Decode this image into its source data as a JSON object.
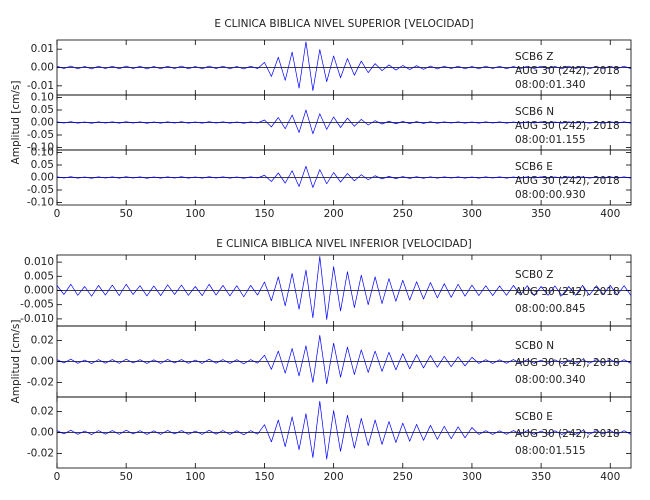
{
  "chart_data": [
    {
      "type": "line",
      "title": "E CLINICA BIBLICA NIVEL SUPERIOR [VELOCIDAD]",
      "y_label": "Amplitud [cm/s]",
      "xlim": [
        0,
        415
      ],
      "xticks": [
        0,
        50,
        100,
        150,
        200,
        250,
        300,
        350,
        400
      ],
      "x": [
        0,
        5,
        10,
        15,
        20,
        25,
        30,
        35,
        40,
        45,
        50,
        55,
        60,
        65,
        70,
        75,
        80,
        85,
        90,
        95,
        100,
        105,
        110,
        115,
        120,
        125,
        130,
        135,
        140,
        145,
        150,
        155,
        160,
        165,
        170,
        175,
        180,
        185,
        190,
        195,
        200,
        205,
        210,
        215,
        220,
        225,
        230,
        235,
        240,
        245,
        250,
        255,
        260,
        265,
        270,
        275,
        280,
        285,
        290,
        295,
        300,
        305,
        310,
        315,
        320,
        325,
        330,
        335,
        340,
        345,
        350,
        355,
        360,
        365,
        370,
        375,
        380,
        385,
        390,
        395,
        400,
        405,
        410,
        415
      ],
      "panels": [
        {
          "station": "SCB6   Z",
          "date": "AUG 30 (242), 2018",
          "time": "08:00:01.340",
          "color": "#0000ff",
          "ylim": [
            -0.015,
            0.015
          ],
          "yticks": [
            -0.01,
            {
              "value": 0,
              "label": "0.00"
            },
            0.01
          ],
          "values": [
            0.0007,
            -0.0006,
            0.0008,
            -0.0007,
            0.0006,
            -0.0008,
            0.0007,
            -0.0006,
            0.0007,
            -0.0007,
            0.0008,
            -0.0006,
            0.0007,
            -0.0008,
            0.0006,
            -0.0007,
            0.0007,
            -0.0006,
            0.0008,
            -0.0007,
            0.0006,
            -0.0007,
            0.0008,
            -0.0006,
            0.0007,
            -0.0007,
            0.0006,
            -0.0008,
            0.0007,
            -0.0006,
            0.0028,
            -0.0049,
            0.0056,
            -0.007,
            0.0084,
            -0.0112,
            0.014,
            -0.0126,
            0.0098,
            -0.0077,
            0.0063,
            -0.0056,
            0.0049,
            -0.0042,
            0.0035,
            -0.0028,
            0.0021,
            -0.0017,
            0.0014,
            -0.0014,
            0.0011,
            -0.0011,
            0.001,
            -0.001,
            0.0008,
            -0.0008,
            0.0007,
            -0.0006,
            0.0007,
            -0.0007,
            0.0006,
            -0.0007,
            0.0007,
            -0.0006,
            0.0007,
            -0.0007,
            0.0006,
            -0.0007,
            0.0007,
            -0.0006,
            0.0007,
            -0.0007,
            0.0006,
            -0.0007,
            0.0007,
            -0.0006,
            0.0007,
            -0.0007,
            0.0006,
            -0.0007,
            0.0007,
            -0.0006,
            0.0007,
            -0.0007
          ]
        },
        {
          "station": "SCB6   N",
          "date": "AUG 30 (242), 2018",
          "time": "08:00:01.155",
          "color": "#0000ff",
          "ylim": [
            -0.11,
            0.11
          ],
          "yticks": [
            {
              "value": -0.1,
              "label": "-0.10"
            },
            -0.05,
            {
              "value": 0,
              "label": "0.00"
            },
            0.05,
            {
              "value": 0.1,
              "label": "0.10"
            }
          ],
          "values": [
            0.0025,
            -0.002,
            0.003,
            -0.0025,
            0.002,
            -0.003,
            0.0025,
            -0.002,
            0.0025,
            -0.0025,
            0.003,
            -0.002,
            0.0025,
            -0.003,
            0.002,
            -0.0025,
            0.0025,
            -0.002,
            0.003,
            -0.0025,
            0.002,
            -0.0025,
            0.003,
            -0.002,
            0.0025,
            -0.0025,
            0.002,
            -0.003,
            0.0025,
            -0.002,
            0.01,
            -0.0175,
            0.02,
            -0.025,
            0.03,
            -0.04,
            0.05,
            -0.045,
            0.035,
            -0.0275,
            0.0225,
            -0.02,
            0.0175,
            -0.015,
            0.0125,
            -0.01,
            0.0075,
            -0.006,
            0.005,
            -0.005,
            0.004,
            -0.004,
            0.0035,
            -0.0035,
            0.003,
            -0.003,
            0.0025,
            -0.002,
            0.0025,
            -0.0025,
            0.002,
            -0.0025,
            0.0025,
            -0.002,
            0.0025,
            -0.0025,
            0.002,
            -0.0025,
            0.0025,
            -0.002,
            0.0025,
            -0.0025,
            0.002,
            -0.0025,
            0.0025,
            -0.002,
            0.0025,
            -0.0025,
            0.002,
            -0.0025,
            0.0025,
            -0.002,
            0.0025,
            -0.0025
          ]
        },
        {
          "station": "SCB6   E",
          "date": "AUG 30 (242), 2018",
          "time": "08:00:00.930",
          "color": "#0000ff",
          "ylim": [
            -0.11,
            0.11
          ],
          "yticks": [
            {
              "value": -0.1,
              "label": "-0.10"
            },
            -0.05,
            {
              "value": 0,
              "label": "0.00"
            },
            0.05,
            {
              "value": 0.1,
              "label": "0.10"
            }
          ],
          "values": [
            0.0025,
            -0.002,
            0.003,
            -0.0025,
            0.002,
            -0.003,
            0.0025,
            -0.002,
            0.0025,
            -0.0025,
            0.003,
            -0.002,
            0.0025,
            -0.003,
            0.002,
            -0.0025,
            0.0025,
            -0.002,
            0.003,
            -0.0025,
            0.002,
            -0.0025,
            0.003,
            -0.002,
            0.0025,
            -0.0025,
            0.002,
            -0.003,
            0.0025,
            -0.002,
            0.009,
            -0.016,
            0.018,
            -0.0225,
            0.027,
            -0.036,
            0.045,
            -0.04,
            0.0315,
            -0.025,
            0.02,
            -0.018,
            0.016,
            -0.0135,
            0.011,
            -0.009,
            0.007,
            -0.0055,
            0.0045,
            -0.0045,
            0.0036,
            -0.0036,
            0.003,
            -0.003,
            0.0027,
            -0.0027,
            0.0025,
            -0.002,
            0.0025,
            -0.0025,
            0.002,
            -0.0025,
            0.0025,
            -0.002,
            0.0025,
            -0.0025,
            0.002,
            -0.0025,
            0.0025,
            -0.002,
            0.0025,
            -0.0025,
            0.002,
            -0.0025,
            0.0025,
            -0.002,
            0.0025,
            -0.0025,
            0.002,
            -0.0025,
            0.0025,
            -0.002,
            0.0025,
            -0.0025
          ]
        }
      ]
    },
    {
      "type": "line",
      "title": "E CLINICA BIBLICA NIVEL INFERIOR [VELOCIDAD]",
      "y_label": "Amplitud [cm/s]",
      "xlim": [
        0,
        415
      ],
      "xticks": [
        0,
        50,
        100,
        150,
        200,
        250,
        300,
        350,
        400
      ],
      "x": [
        0,
        5,
        10,
        15,
        20,
        25,
        30,
        35,
        40,
        45,
        50,
        55,
        60,
        65,
        70,
        75,
        80,
        85,
        90,
        95,
        100,
        105,
        110,
        115,
        120,
        125,
        130,
        135,
        140,
        145,
        150,
        155,
        160,
        165,
        170,
        175,
        180,
        185,
        190,
        195,
        200,
        205,
        210,
        215,
        220,
        225,
        230,
        235,
        240,
        245,
        250,
        255,
        260,
        265,
        270,
        275,
        280,
        285,
        290,
        295,
        300,
        305,
        310,
        315,
        320,
        325,
        330,
        335,
        340,
        345,
        350,
        355,
        360,
        365,
        370,
        375,
        380,
        385,
        390,
        395,
        400,
        405,
        410,
        415
      ],
      "panels": [
        {
          "station": "SCB0   Z",
          "date": "AUG 30 (242), 2018",
          "time": "08:00:00.845",
          "color": "#0000ff",
          "ylim": [
            -0.0125,
            0.0125
          ],
          "yticks": [
            {
              "value": -0.01,
              "label": "-0.010"
            },
            -0.005,
            {
              "value": 0,
              "label": "0.000"
            },
            0.005,
            {
              "value": 0.01,
              "label": "0.010"
            }
          ],
          "values": [
            0.0018,
            -0.0014,
            0.0022,
            -0.0017,
            0.0014,
            -0.002,
            0.0018,
            -0.0016,
            0.0019,
            -0.0018,
            0.0022,
            -0.0014,
            0.0017,
            -0.0019,
            0.0016,
            -0.0018,
            0.002,
            -0.0014,
            0.0019,
            -0.0017,
            0.0014,
            -0.0018,
            0.0022,
            -0.0016,
            0.0018,
            -0.0019,
            0.0017,
            -0.0022,
            0.0018,
            -0.0016,
            0.003,
            -0.0036,
            0.0048,
            -0.0054,
            0.006,
            -0.0066,
            0.0072,
            -0.0096,
            0.012,
            -0.0102,
            0.0084,
            -0.0072,
            0.0066,
            -0.006,
            0.0054,
            -0.005,
            0.0048,
            -0.0046,
            0.0042,
            -0.0038,
            0.0036,
            -0.0034,
            0.0031,
            -0.003,
            0.0028,
            -0.0026,
            0.0024,
            -0.0024,
            0.0022,
            -0.002,
            0.0019,
            -0.0018,
            0.0017,
            -0.0018,
            0.0016,
            -0.0017,
            0.0018,
            -0.0016,
            0.0017,
            -0.0018,
            0.0014,
            -0.0017,
            0.0016,
            -0.0018,
            0.0014,
            -0.0017,
            0.0018,
            -0.0016,
            0.0017,
            -0.0014,
            0.0018,
            -0.0016,
            0.0017,
            -0.0018
          ]
        },
        {
          "station": "SCB0   N",
          "date": "AUG 30 (242), 2018",
          "time": "08:00:00.340",
          "color": "#0000ff",
          "ylim": [
            -0.034,
            0.034
          ],
          "yticks": [
            -0.02,
            {
              "value": 0,
              "label": "0.00"
            },
            0.02
          ],
          "values": [
            0.0018,
            -0.0014,
            0.0022,
            -0.0017,
            0.0014,
            -0.002,
            0.0018,
            -0.0016,
            0.0019,
            -0.0018,
            0.0022,
            -0.0014,
            0.0017,
            -0.0019,
            0.0016,
            -0.0018,
            0.002,
            -0.0014,
            0.0019,
            -0.0017,
            0.0014,
            -0.0018,
            0.0022,
            -0.0016,
            0.0018,
            -0.0019,
            0.0017,
            -0.0022,
            0.0018,
            -0.0016,
            0.006,
            -0.0075,
            0.01,
            -0.0112,
            0.0125,
            -0.0138,
            0.015,
            -0.02,
            0.025,
            -0.0212,
            0.0175,
            -0.015,
            0.0138,
            -0.0125,
            0.0112,
            -0.0105,
            0.01,
            -0.0095,
            0.0088,
            -0.008,
            0.0075,
            -0.007,
            0.0065,
            -0.0062,
            0.0058,
            -0.0055,
            0.005,
            -0.005,
            0.0045,
            -0.0042,
            0.004,
            -0.0018,
            0.0017,
            -0.0018,
            0.0016,
            -0.0017,
            0.0018,
            -0.0016,
            0.0017,
            -0.0018,
            0.0014,
            -0.0017,
            0.0016,
            -0.0018,
            0.0014,
            -0.0017,
            0.0018,
            -0.0016,
            0.0017,
            -0.0014,
            0.0018,
            -0.0016,
            0.0017,
            -0.0018
          ]
        },
        {
          "station": "SCB0   E",
          "date": "AUG 30 (242), 2018",
          "time": "08:00:01.515",
          "color": "#0000ff",
          "ylim": [
            -0.034,
            0.034
          ],
          "yticks": [
            -0.02,
            {
              "value": 0,
              "label": "0.00"
            },
            0.02
          ],
          "values": [
            0.0018,
            -0.0014,
            0.0022,
            -0.0017,
            0.0014,
            -0.002,
            0.0018,
            -0.0016,
            0.0019,
            -0.0018,
            0.0022,
            -0.0014,
            0.0017,
            -0.0019,
            0.0016,
            -0.0018,
            0.002,
            -0.0014,
            0.0019,
            -0.0017,
            0.0014,
            -0.0018,
            0.0022,
            -0.0016,
            0.0018,
            -0.0019,
            0.0017,
            -0.0022,
            0.0018,
            -0.0016,
            0.0075,
            -0.009,
            0.012,
            -0.0135,
            0.015,
            -0.0165,
            0.018,
            -0.024,
            0.03,
            -0.0255,
            0.021,
            -0.018,
            0.0165,
            -0.015,
            0.0135,
            -0.0126,
            0.012,
            -0.0114,
            0.0105,
            -0.0096,
            0.009,
            -0.0084,
            0.0078,
            -0.0075,
            0.0069,
            -0.0066,
            0.006,
            -0.006,
            0.0054,
            -0.0051,
            0.0048,
            -0.0018,
            0.0017,
            -0.0018,
            0.0016,
            -0.0017,
            0.0018,
            -0.0016,
            0.0017,
            -0.0018,
            0.0014,
            -0.0017,
            0.0016,
            -0.0018,
            0.0014,
            -0.0017,
            0.0018,
            -0.0016,
            0.0017,
            -0.0014,
            0.0018,
            -0.0016,
            0.0017,
            -0.0018
          ]
        }
      ]
    }
  ]
}
